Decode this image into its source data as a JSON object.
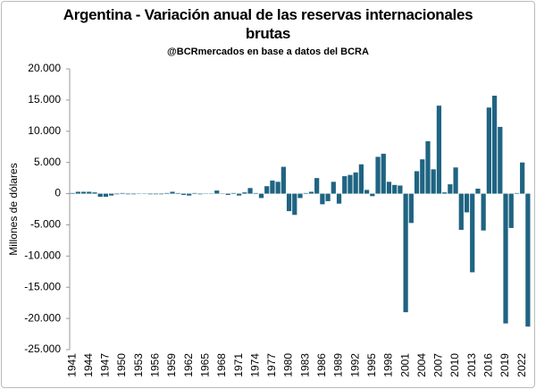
{
  "chart_data": {
    "type": "bar",
    "title": "Argentina - Variación anual de las reservas internacionales brutas",
    "subtitle": "@BCRmercados en base a datos del BCRA",
    "y_label": "Millones de dólares",
    "color": "#1f6482",
    "grid": false,
    "categories": [
      "1941",
      null,
      null,
      "1944",
      null,
      null,
      "1947",
      null,
      null,
      "1950",
      null,
      null,
      "1953",
      null,
      null,
      "1956",
      null,
      null,
      "1959",
      null,
      null,
      "1962",
      null,
      null,
      "1965",
      null,
      null,
      "1968",
      null,
      null,
      "1971",
      null,
      null,
      "1974",
      null,
      null,
      "1977",
      null,
      null,
      "1980",
      null,
      null,
      "1983",
      null,
      null,
      "1986",
      null,
      null,
      "1989",
      null,
      null,
      "1992",
      null,
      null,
      "1995",
      null,
      null,
      "1998",
      null,
      null,
      "2001",
      null,
      null,
      "2004",
      null,
      null,
      "2007",
      null,
      null,
      "2010",
      null,
      null,
      "2013",
      null,
      null,
      "2016",
      null,
      null,
      "2019",
      null,
      null,
      "2022",
      null
    ],
    "values": [
      100,
      300,
      300,
      300,
      200,
      -500,
      -500,
      -300,
      -100,
      100,
      -100,
      -100,
      50,
      -50,
      -100,
      -100,
      -100,
      100,
      300,
      100,
      -200,
      -300,
      100,
      -100,
      50,
      50,
      500,
      50,
      -200,
      100,
      -300,
      200,
      900,
      100,
      -700,
      1200,
      2100,
      1900,
      4300,
      -2800,
      -3400,
      -700,
      100,
      300,
      2500,
      -1700,
      -1200,
      1900,
      -1600,
      2800,
      3000,
      3400,
      4700,
      600,
      -400,
      5900,
      6400,
      1900,
      1400,
      1300,
      -19000,
      -4700,
      3600,
      5500,
      8400,
      3900,
      14100,
      200,
      1500,
      4200,
      -5800,
      -3000,
      -12600,
      800,
      -5900,
      13800,
      15700,
      10700,
      -20800,
      -5500,
      100,
      5000,
      -21300
    ],
    "ylim": [
      -25000,
      20000
    ],
    "yticks": [
      {
        "value": -25000,
        "label": "-25.000"
      },
      {
        "value": -20000,
        "label": "-20.000"
      },
      {
        "value": -15000,
        "label": "-15.000"
      },
      {
        "value": -10000,
        "label": "-10.000"
      },
      {
        "value": -5000,
        "label": "-5.000"
      },
      0,
      {
        "value": 5000,
        "label": "5.000"
      },
      {
        "value": 10000,
        "label": "10.000"
      },
      {
        "value": 15000,
        "label": "15.000"
      },
      {
        "value": 20000,
        "label": "20.000"
      }
    ]
  }
}
